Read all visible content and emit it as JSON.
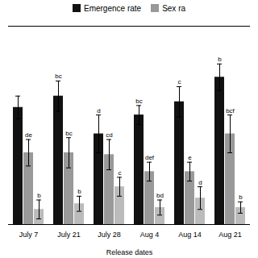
{
  "chart_data": {
    "type": "bar",
    "xlabel": "Release dates",
    "categories": [
      "July 7",
      "July 21",
      "July 28",
      "Aug 4",
      "Aug 14",
      "Aug 21"
    ],
    "series": [
      {
        "name": "Emergence rate",
        "color": "#111111",
        "values": [
          62.0,
          68.0,
          48.0,
          58.0,
          65.0,
          78.0
        ],
        "errors": [
          6.0,
          8.0,
          10.0,
          5.0,
          8.0,
          7.0
        ],
        "labels": [
          null,
          "bc",
          "d",
          "bc",
          "c",
          "b"
        ]
      },
      {
        "name": "Sex ra",
        "color": "#999999",
        "values": [
          38.0,
          38.0,
          37.0,
          28.0,
          28.0,
          48.0
        ],
        "errors": [
          7.0,
          8.0,
          8.0,
          5.0,
          5.0,
          10.0
        ],
        "labels": [
          "de",
          "bc",
          "cd",
          "def",
          "e",
          "bcf"
        ]
      },
      {
        "color": "#bbbbbb",
        "values": [
          8.0,
          11.0,
          20.0,
          9.0,
          14.0,
          9.0
        ],
        "errors": [
          5.0,
          4.0,
          5.0,
          4.0,
          6.0,
          3.0
        ],
        "labels": [
          "b",
          "b",
          "c",
          "bd",
          "d",
          "b"
        ]
      }
    ],
    "ylim": [
      0,
      105
    ],
    "yticks": [],
    "tick_labels": "x",
    "legend": "top"
  }
}
